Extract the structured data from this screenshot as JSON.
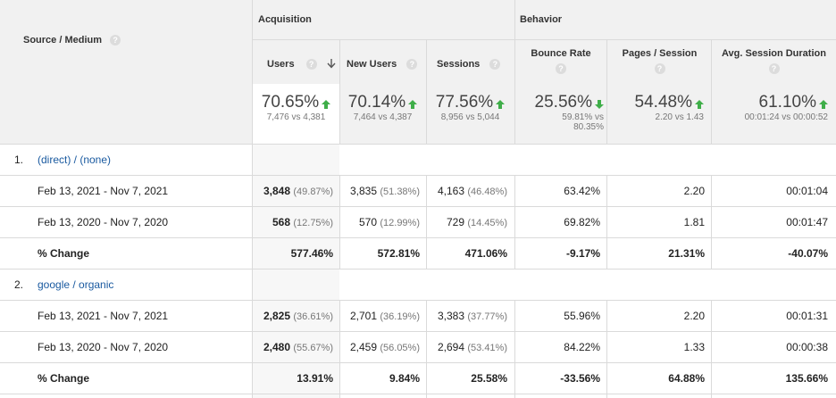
{
  "headers": {
    "dimension": "Source / Medium",
    "acquisition": "Acquisition",
    "behavior": "Behavior",
    "columns": [
      "Users",
      "New Users",
      "Sessions",
      "Bounce Rate",
      "Pages / Session",
      "Avg. Session Duration"
    ]
  },
  "totals": [
    {
      "pct": "70.65%",
      "trend": "up",
      "compare": "7,476 vs 4,381"
    },
    {
      "pct": "70.14%",
      "trend": "up",
      "compare": "7,464 vs 4,387"
    },
    {
      "pct": "77.56%",
      "trend": "up",
      "compare": "8,956 vs 5,044"
    },
    {
      "pct": "25.56%",
      "trend": "down",
      "compare_line1": "59.81% vs",
      "compare_line2": "80.35%"
    },
    {
      "pct": "54.48%",
      "trend": "up",
      "compare": "2.20 vs 1.43"
    },
    {
      "pct": "61.10%",
      "trend": "up",
      "compare": "00:01:24 vs 00:00:52"
    }
  ],
  "groups": [
    {
      "index": "1.",
      "name": "(direct) / (none)",
      "rows": [
        {
          "label": "Feb 13, 2021 - Nov 7, 2021",
          "users": "3,848",
          "users_pct": "(49.87%)",
          "new_users": "3,835",
          "new_users_pct": "(51.38%)",
          "sessions": "4,163",
          "sessions_pct": "(46.48%)",
          "bounce": "63.42%",
          "pages": "2.20",
          "duration": "00:01:04"
        },
        {
          "label": "Feb 13, 2020 - Nov 7, 2020",
          "users": "568",
          "users_pct": "(12.75%)",
          "new_users": "570",
          "new_users_pct": "(12.99%)",
          "sessions": "729",
          "sessions_pct": "(14.45%)",
          "bounce": "69.82%",
          "pages": "1.81",
          "duration": "00:01:47"
        }
      ],
      "change": {
        "label": "% Change",
        "users": "577.46%",
        "new_users": "572.81%",
        "sessions": "471.06%",
        "bounce": "-9.17%",
        "pages": "21.31%",
        "duration": "-40.07%"
      }
    },
    {
      "index": "2.",
      "name": "google / organic",
      "rows": [
        {
          "label": "Feb 13, 2021 - Nov 7, 2021",
          "users": "2,825",
          "users_pct": "(36.61%)",
          "new_users": "2,701",
          "new_users_pct": "(36.19%)",
          "sessions": "3,383",
          "sessions_pct": "(37.77%)",
          "bounce": "55.96%",
          "pages": "2.20",
          "duration": "00:01:31"
        },
        {
          "label": "Feb 13, 2020 - Nov 7, 2020",
          "users": "2,480",
          "users_pct": "(55.67%)",
          "new_users": "2,459",
          "new_users_pct": "(56.05%)",
          "sessions": "2,694",
          "sessions_pct": "(53.41%)",
          "bounce": "84.22%",
          "pages": "1.33",
          "duration": "00:00:38"
        }
      ],
      "change": {
        "label": "% Change",
        "users": "13.91%",
        "new_users": "9.84%",
        "sessions": "25.58%",
        "bounce": "-33.56%",
        "pages": "64.88%",
        "duration": "135.66%"
      }
    }
  ],
  "icons": {
    "help": "help-icon",
    "sort": "sort-down-arrow-icon",
    "trend_up": "trend-up-arrow-icon",
    "trend_down": "trend-down-arrow-icon"
  },
  "colors": {
    "positive": "#3fae49",
    "link": "#1a5aa0"
  }
}
